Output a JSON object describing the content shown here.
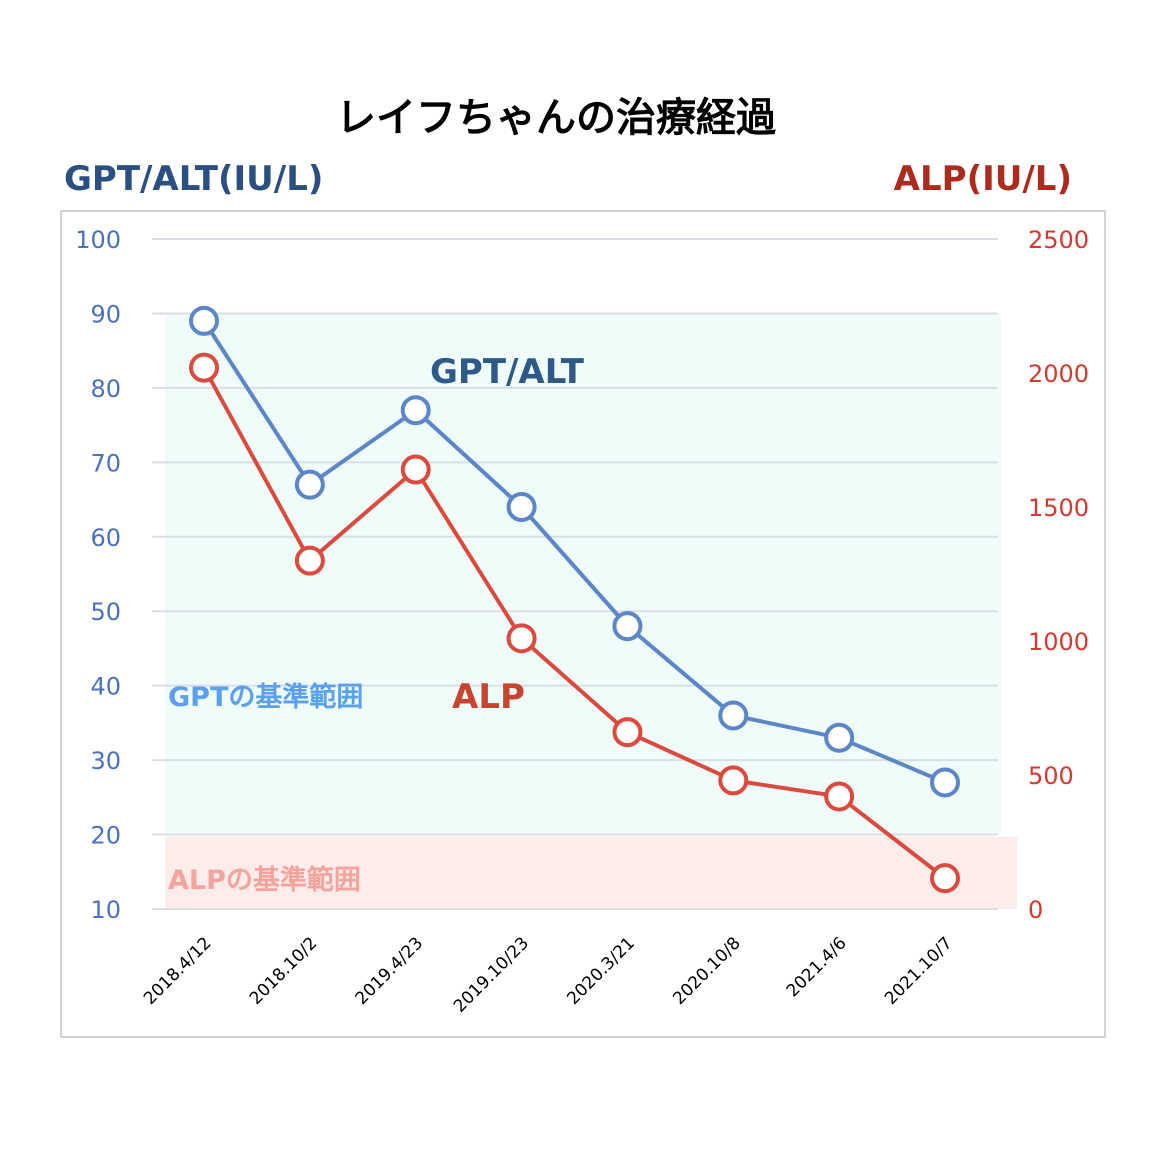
{
  "chart_data": {
    "type": "line",
    "title": "レイフちゃんの治療経過",
    "left_axis": {
      "label": "GPT/ALT(IU/L)",
      "ticks": [
        "100",
        "90",
        "80",
        "70",
        "60",
        "50",
        "40",
        "30",
        "20",
        "10"
      ],
      "ylim": [
        10,
        100
      ],
      "color": "#4a72c0"
    },
    "right_axis": {
      "label": "ALP(IU/L)",
      "ticks": [
        "2500",
        "2000",
        "1500",
        "1000",
        "500",
        "0"
      ],
      "ylim": [
        0,
        2500
      ],
      "color": "#d63a2f"
    },
    "categories": [
      "2018.4/12",
      "2018.10/2",
      "2019.4/23",
      "2019.10/23",
      "2020.3/21",
      "2020.10/8",
      "2021.4/6",
      "2021.10/7"
    ],
    "series": [
      {
        "name": "GPT/ALT",
        "axis": "left",
        "color": "#5b86c8",
        "values": [
          89,
          67,
          77,
          64,
          48,
          36,
          33,
          27
        ]
      },
      {
        "name": "ALP",
        "axis": "right",
        "color": "#dc4a3e",
        "values": [
          2020,
          1300,
          1640,
          1010,
          660,
          480,
          420,
          115
        ]
      }
    ],
    "reference_bands": [
      {
        "label": "GPTの基準範囲",
        "axis": "left",
        "range": [
          20,
          90
        ],
        "color": "#effcfa",
        "label_color": "#5aa0ee"
      },
      {
        "label": "ALPの基準範囲",
        "axis": "right",
        "range": [
          0,
          270
        ],
        "color": "#fcecea",
        "label_color": "#f4a49c"
      }
    ],
    "grid": true,
    "legend": "inline labels"
  }
}
